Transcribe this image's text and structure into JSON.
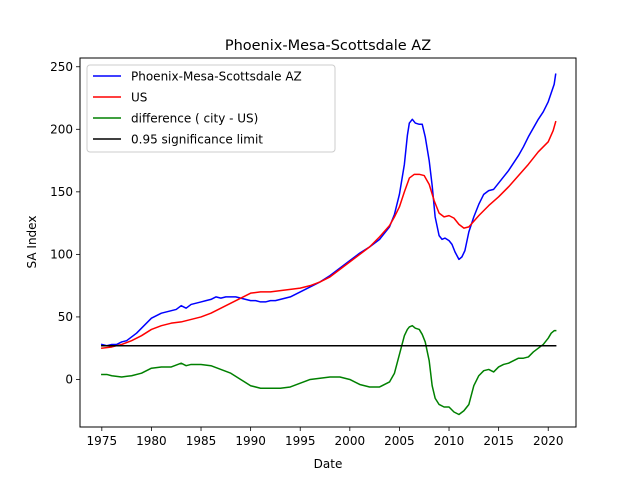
{
  "chart_data": {
    "type": "line",
    "title": "Phoenix-Mesa-Scottsdale AZ",
    "xlabel": "Date",
    "ylabel": "SA Index",
    "xlim": [
      1972.8,
      2022.8
    ],
    "ylim": [
      -38,
      257
    ],
    "x_ticks": [
      1975,
      1980,
      1985,
      1990,
      1995,
      2000,
      2005,
      2010,
      2015,
      2020
    ],
    "y_ticks": [
      0,
      50,
      100,
      150,
      200,
      250
    ],
    "grid": false,
    "legend_position": "top-left",
    "series": [
      {
        "name": "Phoenix-Mesa-Scottsdale AZ",
        "color": "#0000ff",
        "x": [
          1975,
          1975.5,
          1976,
          1976.5,
          1977,
          1977.5,
          1978,
          1978.5,
          1979,
          1979.5,
          1980,
          1980.5,
          1981,
          1981.5,
          1982,
          1982.5,
          1983,
          1983.5,
          1984,
          1984.5,
          1985,
          1985.5,
          1986,
          1986.5,
          1987,
          1987.5,
          1988,
          1988.5,
          1989,
          1989.5,
          1990,
          1990.5,
          1991,
          1991.5,
          1992,
          1992.5,
          1993,
          1994,
          1995,
          1996,
          1997,
          1998,
          1999,
          2000,
          2001,
          2002,
          2003,
          2004,
          2004.5,
          2005,
          2005.5,
          2005.8,
          2006,
          2006.3,
          2006.6,
          2007,
          2007.3,
          2007.6,
          2008,
          2008.3,
          2008.6,
          2009,
          2009.3,
          2009.6,
          2010,
          2010.3,
          2010.6,
          2011,
          2011.3,
          2011.6,
          2012,
          2012.5,
          2013,
          2013.5,
          2014,
          2014.5,
          2015,
          2015.5,
          2016,
          2016.5,
          2017,
          2017.5,
          2018,
          2018.5,
          2019,
          2019.5,
          2020,
          2020.3,
          2020.6,
          2020.75
        ],
        "y": [
          28,
          27,
          28,
          28,
          30,
          31,
          34,
          37,
          41,
          45,
          49,
          51,
          53,
          54,
          55,
          56,
          59,
          57,
          60,
          61,
          62,
          63,
          64,
          66,
          65,
          66,
          66,
          66,
          65,
          64,
          63,
          63,
          62,
          62,
          63,
          63,
          64,
          66,
          70,
          74,
          78,
          83,
          89,
          95,
          101,
          106,
          112,
          122,
          132,
          148,
          172,
          195,
          205,
          208,
          205,
          204,
          204,
          194,
          175,
          155,
          130,
          115,
          112,
          113,
          111,
          108,
          102,
          96,
          98,
          103,
          118,
          130,
          140,
          148,
          151,
          152,
          157,
          162,
          167,
          173,
          179,
          186,
          194,
          201,
          208,
          214,
          222,
          229,
          236,
          244
        ]
      },
      {
        "name": "US",
        "color": "#ff0000",
        "x": [
          1975,
          1976,
          1977,
          1978,
          1979,
          1980,
          1981,
          1982,
          1983,
          1984,
          1985,
          1986,
          1987,
          1988,
          1989,
          1990,
          1991,
          1992,
          1993,
          1994,
          1995,
          1996,
          1997,
          1998,
          1999,
          2000,
          2001,
          2002,
          2003,
          2004,
          2004.5,
          2005,
          2005.5,
          2006,
          2006.5,
          2007,
          2007.5,
          2008,
          2008.5,
          2009,
          2009.5,
          2010,
          2010.5,
          2011,
          2011.5,
          2012,
          2013,
          2014,
          2015,
          2016,
          2017,
          2018,
          2019,
          2020,
          2020.5,
          2020.75
        ],
        "y": [
          25,
          26,
          28,
          31,
          35,
          40,
          43,
          45,
          46,
          48,
          50,
          53,
          57,
          61,
          65,
          69,
          70,
          70,
          71,
          72,
          73,
          75,
          78,
          82,
          88,
          94,
          100,
          106,
          114,
          123,
          130,
          138,
          150,
          161,
          164,
          164,
          163,
          156,
          143,
          133,
          130,
          131,
          129,
          124,
          121,
          122,
          131,
          139,
          146,
          154,
          163,
          172,
          182,
          190,
          199,
          206
        ]
      },
      {
        "name": "difference ( city - US)",
        "color": "#008000",
        "x": [
          1975,
          1975.5,
          1976,
          1977,
          1978,
          1979,
          1980,
          1981,
          1982,
          1983,
          1983.5,
          1984,
          1985,
          1986,
          1987,
          1988,
          1989,
          1990,
          1991,
          1992,
          1993,
          1994,
          1995,
          1996,
          1997,
          1998,
          1999,
          2000,
          2001,
          2002,
          2003,
          2004,
          2004.5,
          2005,
          2005.5,
          2005.8,
          2006,
          2006.3,
          2006.6,
          2007,
          2007.3,
          2007.6,
          2008,
          2008.3,
          2008.6,
          2009,
          2009.5,
          2010,
          2010.5,
          2011,
          2011.5,
          2012,
          2012.5,
          2013,
          2013.5,
          2014,
          2014.5,
          2015,
          2015.5,
          2016,
          2016.5,
          2017,
          2017.5,
          2018,
          2018.5,
          2019,
          2019.5,
          2020,
          2020.3,
          2020.6,
          2020.75
        ],
        "y": [
          4,
          4,
          3,
          2,
          3,
          5,
          9,
          10,
          10,
          13,
          11,
          12,
          12,
          11,
          8,
          5,
          0,
          -5,
          -7,
          -7,
          -7,
          -6,
          -3,
          0,
          1,
          2,
          2,
          0,
          -4,
          -6,
          -6,
          -2,
          5,
          20,
          35,
          40,
          42,
          43,
          41,
          40,
          36,
          30,
          15,
          -5,
          -15,
          -20,
          -22,
          -22,
          -26,
          -28,
          -25,
          -20,
          -5,
          3,
          7,
          8,
          6,
          10,
          12,
          13,
          15,
          17,
          17,
          18,
          22,
          25,
          28,
          33,
          37,
          39,
          39
        ]
      },
      {
        "name": "0.95 significance limit",
        "color": "#000000",
        "x": [
          1975,
          2020.75
        ],
        "y": [
          27,
          27
        ]
      }
    ]
  }
}
